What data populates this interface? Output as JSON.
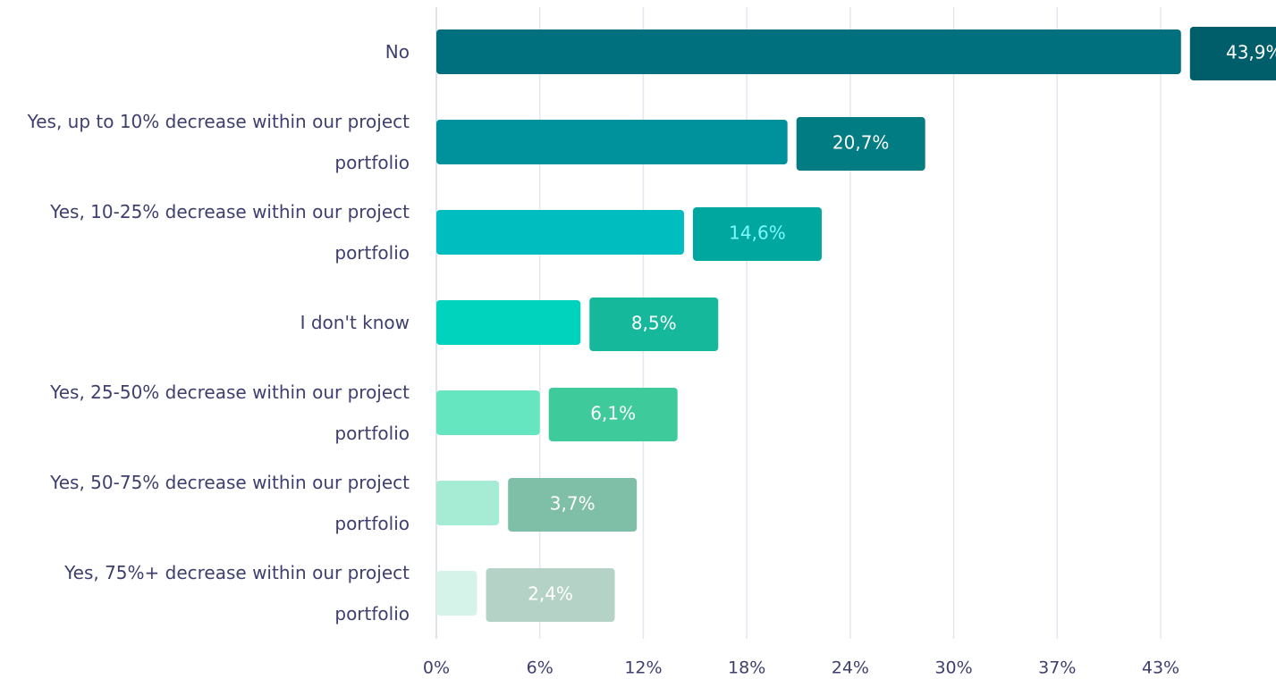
{
  "chart_data": {
    "type": "hbar",
    "categories": [
      "No",
      "Yes, up to 10% decrease within our project portfolio",
      "Yes, 10-25% decrease within our project portfolio",
      "I don't know",
      "Yes, 25-50% decrease within our project portfolio",
      "Yes, 50-75% decrease within our project portfolio",
      "Yes, 75%+ decrease within our project portfolio"
    ],
    "values": [
      43.9,
      20.7,
      14.6,
      8.5,
      6.1,
      3.7,
      2.4
    ],
    "value_labels": [
      "43,9%",
      "20,7%",
      "14,6%",
      "8,5%",
      "6,1%",
      "3,7%",
      "2,4%"
    ],
    "colors": [
      "#00707e",
      "#00929c",
      "#00bdbf",
      "#00d3bd",
      "#66e6c0",
      "#a6ecd4",
      "#d6f3ea"
    ],
    "label_colors": [
      "#005d6a",
      "#007c82",
      "#00a79e",
      "#15b89a",
      "#3fca9b",
      "#7fbfa8",
      "#b5d2c6"
    ],
    "xlim": [
      0,
      49.5
    ],
    "xticks": [
      {
        "value": 0,
        "label": "0%"
      },
      {
        "value": 6.1,
        "label": "6%"
      },
      {
        "value": 12.2,
        "label": "12%"
      },
      {
        "value": 18.3,
        "label": "18%"
      },
      {
        "value": 24.4,
        "label": "24%"
      },
      {
        "value": 30.5,
        "label": "30%"
      },
      {
        "value": 36.6,
        "label": "37%"
      },
      {
        "value": 42.7,
        "label": "43%"
      }
    ],
    "grid": true
  }
}
